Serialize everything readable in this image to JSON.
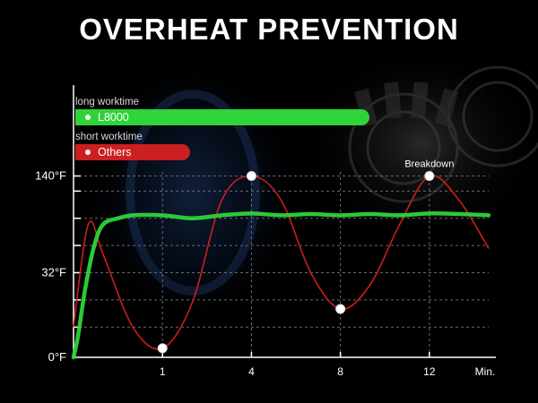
{
  "header": {
    "title": "OVERHEAT PREVENTION"
  },
  "legend": [
    {
      "caption": "long worktime",
      "label": "L8000",
      "color": "#2ed43a"
    },
    {
      "caption": "short worktime",
      "label": "Others",
      "color": "#cc1f1f"
    }
  ],
  "chart_data": {
    "type": "line",
    "x_ticks": [
      "1",
      "4",
      "8",
      "12"
    ],
    "x_unit_label": "Min.",
    "y_ticks": [
      "0°F",
      "32°F",
      "140°F"
    ],
    "series": [
      {
        "name": "L8000",
        "color": "#2ed43a",
        "points": [
          [
            0,
            0
          ],
          [
            0.15,
            0.35
          ],
          [
            0.4,
            1.15
          ],
          [
            0.7,
            1.85
          ],
          [
            1,
            2.2
          ],
          [
            1.5,
            2.3
          ],
          [
            2,
            2.35
          ],
          [
            3,
            2.35
          ],
          [
            4,
            2.3
          ],
          [
            5,
            2.35
          ],
          [
            6,
            2.38
          ],
          [
            7,
            2.35
          ],
          [
            8,
            2.37
          ],
          [
            9,
            2.35
          ],
          [
            10,
            2.37
          ],
          [
            11,
            2.35
          ],
          [
            12,
            2.38
          ],
          [
            13,
            2.37
          ],
          [
            14,
            2.35
          ]
        ]
      },
      {
        "name": "Others",
        "color": "#cc1f1f",
        "points": [
          [
            0,
            0.5
          ],
          [
            0.5,
            2.2
          ],
          [
            1,
            1.7
          ],
          [
            2,
            0.5
          ],
          [
            3,
            0.15
          ],
          [
            4,
            0.9
          ],
          [
            5,
            2.6
          ],
          [
            6,
            3.0
          ],
          [
            7,
            2.6
          ],
          [
            8,
            1.4
          ],
          [
            9,
            0.8
          ],
          [
            10,
            1.2
          ],
          [
            11,
            2.2
          ],
          [
            12,
            3.0
          ],
          [
            13,
            2.6
          ],
          [
            14,
            1.8
          ]
        ]
      }
    ],
    "markers": [
      {
        "x": 3,
        "y": 0.15
      },
      {
        "x": 6,
        "y": 3.0
      },
      {
        "x": 9,
        "y": 0.8
      },
      {
        "x": 12,
        "y": 3.0,
        "label": "Breakdown"
      }
    ],
    "xlim": [
      0,
      14
    ],
    "ylim": [
      0,
      3.2
    ],
    "grid": "dashed"
  },
  "colors": {
    "background": "#000000",
    "axis": "#ffffff",
    "grid": "#6a6a6a",
    "marker": "#ffffff"
  }
}
